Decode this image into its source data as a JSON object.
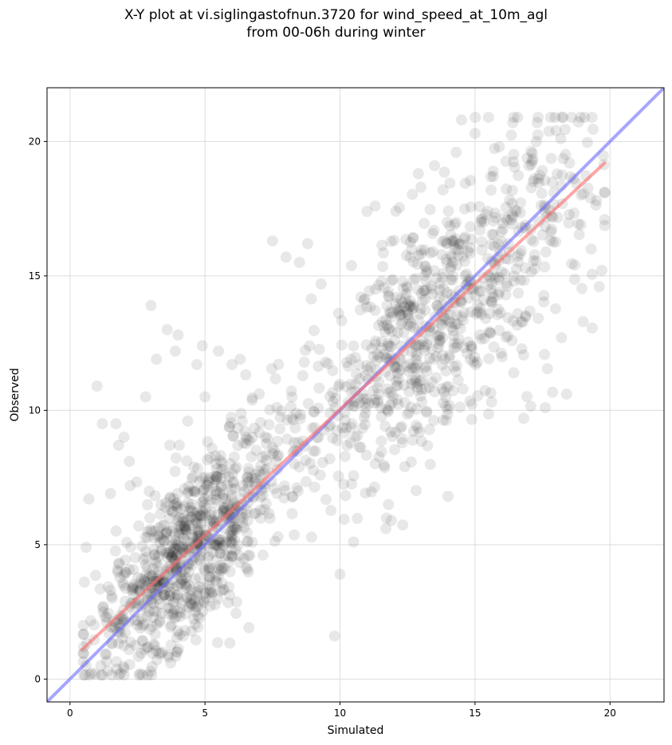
{
  "chart_data": {
    "type": "scatter",
    "title_line1": "X-Y plot at vi.siglingastofnun.3720 for wind_speed_at_10m_agl",
    "title_line2": "from 00-06h during winter",
    "xlabel": "Simulated",
    "ylabel": "Observed",
    "xlim": [
      -0.85,
      22.0
    ],
    "ylim": [
      -0.85,
      22.0
    ],
    "x_ticks": [
      0,
      5,
      10,
      15,
      20
    ],
    "y_ticks": [
      0,
      5,
      10,
      15,
      20
    ],
    "grid": true,
    "point_color": "#000000",
    "point_alpha": 0.09,
    "point_count": 1700,
    "reference_line": {
      "name": "1:1 line",
      "color": "#6b6bff",
      "x": [
        -0.85,
        22.0
      ],
      "y": [
        -0.85,
        22.0
      ]
    },
    "fit_line": {
      "name": "regression fit",
      "color": "#ff6b6b",
      "x": [
        0.45,
        19.8
      ],
      "y": [
        1.1,
        19.2
      ]
    },
    "points_sample": [
      [
        0.5,
        2.0
      ],
      [
        0.6,
        0.5
      ],
      [
        0.6,
        4.9
      ],
      [
        0.7,
        6.7
      ],
      [
        1.0,
        10.9
      ],
      [
        1.2,
        9.5
      ],
      [
        1.4,
        0.3
      ],
      [
        1.5,
        6.9
      ],
      [
        1.7,
        9.5
      ],
      [
        1.8,
        8.7
      ],
      [
        2.0,
        9.0
      ],
      [
        2.2,
        8.1
      ],
      [
        2.3,
        3.3
      ],
      [
        2.6,
        0.2
      ],
      [
        2.8,
        10.5
      ],
      [
        3.0,
        13.9
      ],
      [
        3.2,
        11.9
      ],
      [
        3.6,
        13.0
      ],
      [
        3.7,
        8.7
      ],
      [
        3.9,
        12.2
      ],
      [
        4.0,
        12.8
      ],
      [
        4.7,
        11.7
      ],
      [
        4.9,
        12.4
      ],
      [
        5.0,
        10.5
      ],
      [
        5.5,
        12.2
      ],
      [
        6.0,
        11.7
      ],
      [
        6.3,
        11.9
      ],
      [
        7.5,
        16.3
      ],
      [
        8.0,
        15.7
      ],
      [
        8.5,
        15.5
      ],
      [
        8.8,
        16.2
      ],
      [
        9.3,
        14.7
      ],
      [
        9.8,
        1.6
      ],
      [
        10.0,
        3.9
      ],
      [
        10.5,
        5.1
      ],
      [
        11.0,
        17.4
      ],
      [
        11.3,
        17.6
      ],
      [
        11.7,
        5.6
      ],
      [
        11.9,
        5.9
      ],
      [
        12.4,
        7.9
      ],
      [
        12.9,
        18.8
      ],
      [
        13.5,
        19.1
      ],
      [
        14.0,
        6.8
      ],
      [
        14.3,
        19.6
      ],
      [
        14.5,
        20.8
      ],
      [
        15.0,
        20.3
      ],
      [
        15.5,
        20.9
      ],
      [
        15.9,
        19.8
      ],
      [
        16.4,
        20.7
      ],
      [
        16.8,
        9.7
      ],
      [
        17.0,
        19.1
      ],
      [
        17.3,
        20.7
      ],
      [
        17.6,
        10.1
      ],
      [
        17.8,
        20.9
      ],
      [
        18.0,
        20.4
      ],
      [
        18.2,
        12.7
      ],
      [
        18.5,
        19.2
      ],
      [
        19.0,
        13.3
      ],
      [
        19.3,
        16.0
      ],
      [
        19.5,
        17.8
      ],
      [
        19.6,
        14.6
      ],
      [
        19.8,
        18.1
      ]
    ]
  }
}
